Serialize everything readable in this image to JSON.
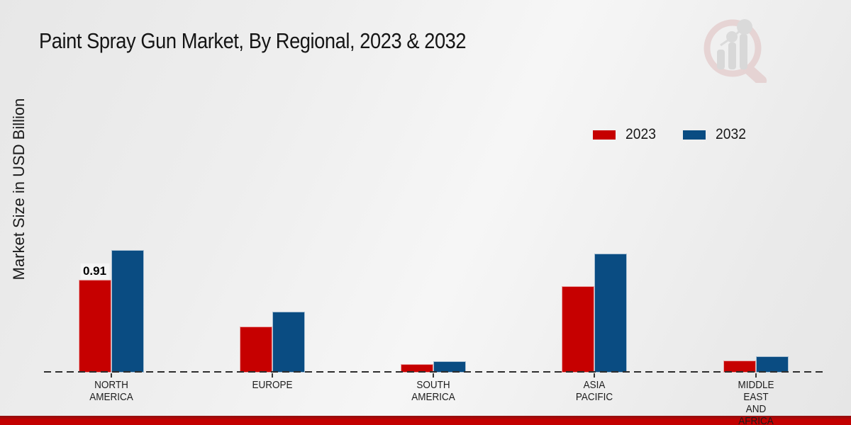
{
  "page": {
    "title": "Paint Spray Gun Market, By Regional, 2023 & 2032"
  },
  "y_axis_label": "Market Size in USD Billion",
  "legend": {
    "position": "upper right",
    "items": [
      {
        "label": "2023",
        "color": "#c60000"
      },
      {
        "label": "2032",
        "color": "#0a4c82"
      }
    ]
  },
  "watermark_icon": "magnifier-bar-chart-logo",
  "footer": {
    "bar_color": "#c30000"
  },
  "chart_data": {
    "type": "bar",
    "title": "Paint Spray Gun Market, By Regional, 2023 & 2032",
    "xlabel": "",
    "ylabel": "Market Size in USD Billion",
    "ylim": [
      0,
      1.35
    ],
    "grid": false,
    "baseline_style": "dashed",
    "legend_position": "upper right",
    "categories": [
      "North America",
      "Europe",
      "South America",
      "Asia Pacific",
      "Middle East and Africa"
    ],
    "category_label_lines": [
      [
        "NORTH",
        "AMERICA"
      ],
      [
        "EUROPE"
      ],
      [
        "SOUTH",
        "AMERICA"
      ],
      [
        "ASIA",
        "PACIFIC"
      ],
      [
        "MIDDLE",
        "EAST",
        "AND",
        "AFRICA"
      ]
    ],
    "series": [
      {
        "name": "2023",
        "color": "#c60000",
        "values": [
          0.91,
          0.45,
          0.08,
          0.85,
          0.12
        ]
      },
      {
        "name": "2032",
        "color": "#0a4c82",
        "values": [
          1.2,
          0.6,
          0.11,
          1.17,
          0.16
        ]
      }
    ],
    "bar_labels": [
      {
        "series_index": 0,
        "category_index": 0,
        "text": "0.91"
      }
    ]
  }
}
